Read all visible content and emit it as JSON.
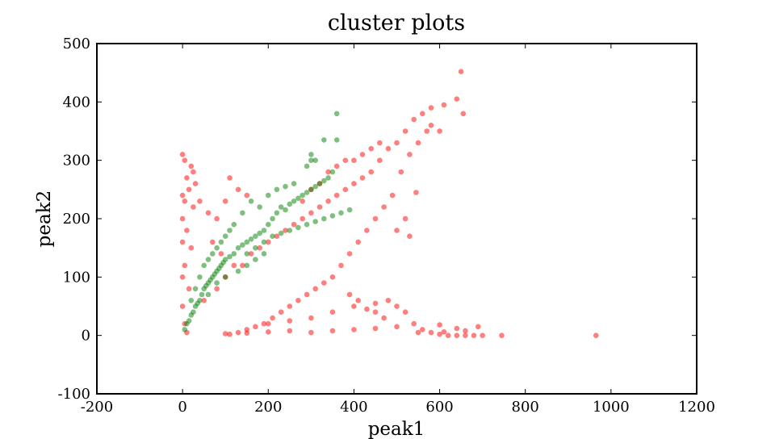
{
  "chart_data": {
    "type": "scatter",
    "title": "cluster plots",
    "xlabel": "peak1",
    "ylabel": "peak2",
    "xlim": [
      -200,
      1200
    ],
    "ylim": [
      -100,
      500
    ],
    "x_ticks": [
      -200,
      0,
      200,
      400,
      600,
      800,
      1000,
      1200
    ],
    "y_ticks": [
      -100,
      0,
      100,
      200,
      300,
      400,
      500
    ],
    "x_tick_labels": [
      "-200",
      "0",
      "200",
      "400",
      "600",
      "800",
      "1000",
      "1200"
    ],
    "y_tick_labels": [
      "-100",
      "0",
      "100",
      "200",
      "300",
      "400",
      "500"
    ],
    "grid": false,
    "legend": "none",
    "series": [
      {
        "color": "#ff0000",
        "opacity": 0.5,
        "points": [
          [
            0,
            310
          ],
          [
            5,
            300
          ],
          [
            20,
            290
          ],
          [
            25,
            280
          ],
          [
            10,
            270
          ],
          [
            30,
            260
          ],
          [
            15,
            250
          ],
          [
            0,
            240
          ],
          [
            5,
            230
          ],
          [
            25,
            220
          ],
          [
            0,
            200
          ],
          [
            10,
            180
          ],
          [
            0,
            160
          ],
          [
            20,
            150
          ],
          [
            5,
            120
          ],
          [
            0,
            100
          ],
          [
            15,
            80
          ],
          [
            0,
            50
          ],
          [
            5,
            20
          ],
          [
            10,
            5
          ],
          [
            40,
            230
          ],
          [
            60,
            210
          ],
          [
            80,
            200
          ],
          [
            100,
            230
          ],
          [
            110,
            270
          ],
          [
            130,
            250
          ],
          [
            150,
            240
          ],
          [
            70,
            160
          ],
          [
            90,
            140
          ],
          [
            120,
            120
          ],
          [
            50,
            60
          ],
          [
            80,
            80
          ],
          [
            100,
            100
          ],
          [
            140,
            120
          ],
          [
            160,
            140
          ],
          [
            180,
            150
          ],
          [
            200,
            160
          ],
          [
            220,
            170
          ],
          [
            240,
            180
          ],
          [
            260,
            190
          ],
          [
            280,
            200
          ],
          [
            300,
            210
          ],
          [
            320,
            220
          ],
          [
            340,
            230
          ],
          [
            360,
            240
          ],
          [
            380,
            250
          ],
          [
            400,
            260
          ],
          [
            420,
            270
          ],
          [
            440,
            280
          ],
          [
            460,
            300
          ],
          [
            480,
            320
          ],
          [
            500,
            330
          ],
          [
            520,
            350
          ],
          [
            540,
            370
          ],
          [
            560,
            380
          ],
          [
            580,
            390
          ],
          [
            570,
            350
          ],
          [
            550,
            330
          ],
          [
            530,
            310
          ],
          [
            510,
            280
          ],
          [
            490,
            240
          ],
          [
            470,
            220
          ],
          [
            450,
            200
          ],
          [
            430,
            180
          ],
          [
            410,
            160
          ],
          [
            390,
            140
          ],
          [
            370,
            120
          ],
          [
            350,
            100
          ],
          [
            330,
            90
          ],
          [
            310,
            80
          ],
          [
            290,
            70
          ],
          [
            270,
            60
          ],
          [
            250,
            50
          ],
          [
            230,
            40
          ],
          [
            210,
            30
          ],
          [
            190,
            20
          ],
          [
            170,
            15
          ],
          [
            150,
            10
          ],
          [
            130,
            5
          ],
          [
            110,
            2
          ],
          [
            400,
            300
          ],
          [
            420,
            310
          ],
          [
            440,
            320
          ],
          [
            460,
            330
          ],
          [
            380,
            300
          ],
          [
            360,
            290
          ],
          [
            340,
            280
          ],
          [
            320,
            260
          ],
          [
            300,
            250
          ],
          [
            280,
            230
          ],
          [
            640,
            405
          ],
          [
            650,
            452
          ],
          [
            610,
            395
          ],
          [
            655,
            380
          ],
          [
            600,
            350
          ],
          [
            580,
            360
          ],
          [
            545,
            245
          ],
          [
            520,
            200
          ],
          [
            500,
            180
          ],
          [
            530,
            170
          ],
          [
            200,
            20
          ],
          [
            250,
            25
          ],
          [
            300,
            30
          ],
          [
            350,
            40
          ],
          [
            400,
            50
          ],
          [
            450,
            55
          ],
          [
            480,
            60
          ],
          [
            500,
            50
          ],
          [
            520,
            40
          ],
          [
            540,
            20
          ],
          [
            560,
            10
          ],
          [
            580,
            5
          ],
          [
            600,
            2
          ],
          [
            620,
            0
          ],
          [
            640,
            0
          ],
          [
            660,
            0
          ],
          [
            680,
            0
          ],
          [
            700,
            0
          ],
          [
            745,
            0
          ],
          [
            965,
            0
          ],
          [
            690,
            15
          ],
          [
            660,
            8
          ],
          [
            640,
            12
          ],
          [
            610,
            6
          ],
          [
            600,
            18
          ],
          [
            450,
            40
          ],
          [
            470,
            30
          ],
          [
            430,
            45
          ],
          [
            410,
            60
          ],
          [
            390,
            70
          ],
          [
            300,
            5
          ],
          [
            350,
            8
          ],
          [
            400,
            10
          ],
          [
            450,
            12
          ],
          [
            500,
            15
          ],
          [
            550,
            5
          ],
          [
            250,
            8
          ],
          [
            200,
            6
          ],
          [
            150,
            4
          ],
          [
            100,
            3
          ]
        ]
      },
      {
        "color": "#008000",
        "opacity": 0.5,
        "points": [
          [
            10,
            20
          ],
          [
            20,
            35
          ],
          [
            30,
            50
          ],
          [
            40,
            60
          ],
          [
            50,
            80
          ],
          [
            60,
            90
          ],
          [
            70,
            100
          ],
          [
            80,
            110
          ],
          [
            90,
            120
          ],
          [
            100,
            130
          ],
          [
            110,
            135
          ],
          [
            120,
            140
          ],
          [
            130,
            150
          ],
          [
            140,
            155
          ],
          [
            150,
            160
          ],
          [
            160,
            165
          ],
          [
            170,
            170
          ],
          [
            180,
            175
          ],
          [
            190,
            180
          ],
          [
            200,
            190
          ],
          [
            210,
            200
          ],
          [
            220,
            210
          ],
          [
            230,
            220
          ],
          [
            240,
            215
          ],
          [
            250,
            225
          ],
          [
            260,
            230
          ],
          [
            270,
            235
          ],
          [
            280,
            240
          ],
          [
            290,
            245
          ],
          [
            300,
            250
          ],
          [
            310,
            255
          ],
          [
            320,
            260
          ],
          [
            330,
            265
          ],
          [
            340,
            270
          ],
          [
            350,
            280
          ],
          [
            120,
            190
          ],
          [
            140,
            210
          ],
          [
            160,
            230
          ],
          [
            180,
            220
          ],
          [
            200,
            240
          ],
          [
            220,
            250
          ],
          [
            240,
            255
          ],
          [
            260,
            260
          ],
          [
            290,
            290
          ],
          [
            300,
            310
          ],
          [
            310,
            300
          ],
          [
            330,
            335
          ],
          [
            360,
            335
          ],
          [
            360,
            380
          ],
          [
            300,
            300
          ],
          [
            20,
            60
          ],
          [
            30,
            80
          ],
          [
            40,
            100
          ],
          [
            50,
            120
          ],
          [
            60,
            130
          ],
          [
            70,
            140
          ],
          [
            80,
            150
          ],
          [
            90,
            160
          ],
          [
            100,
            170
          ],
          [
            110,
            180
          ],
          [
            150,
            140
          ],
          [
            170,
            150
          ],
          [
            190,
            160
          ],
          [
            210,
            170
          ],
          [
            230,
            175
          ],
          [
            250,
            180
          ],
          [
            270,
            185
          ],
          [
            290,
            190
          ],
          [
            310,
            195
          ],
          [
            330,
            200
          ],
          [
            350,
            205
          ],
          [
            370,
            210
          ],
          [
            390,
            215
          ],
          [
            130,
            110
          ],
          [
            150,
            120
          ],
          [
            170,
            130
          ],
          [
            190,
            140
          ],
          [
            80,
            90
          ],
          [
            100,
            100
          ],
          [
            60,
            70
          ],
          [
            5,
            10
          ],
          [
            15,
            25
          ],
          [
            25,
            40
          ],
          [
            35,
            55
          ],
          [
            45,
            70
          ],
          [
            55,
            85
          ],
          [
            65,
            95
          ],
          [
            75,
            105
          ],
          [
            85,
            115
          ],
          [
            95,
            125
          ]
        ]
      }
    ]
  }
}
